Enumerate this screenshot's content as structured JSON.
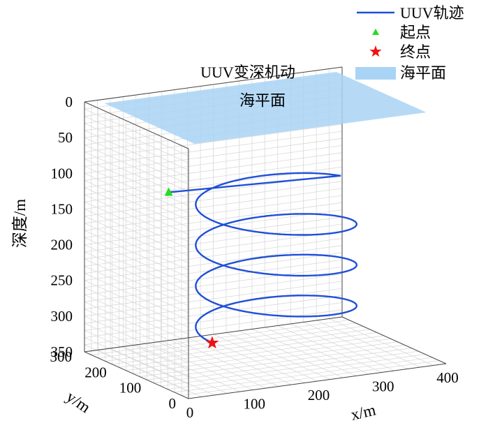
{
  "chart_data": {
    "type": "line3d",
    "title": "UUV变深机动",
    "xlabel": "x/m",
    "ylabel": "y/m",
    "zlabel": "深度/m",
    "xlim": [
      0,
      400
    ],
    "ylim": [
      0,
      300
    ],
    "zlim": [
      0,
      350
    ],
    "z_reversed": true,
    "x_ticks": [
      "0",
      "100",
      "200",
      "300",
      "400"
    ],
    "y_ticks": [
      "0",
      "100",
      "200",
      "300"
    ],
    "z_ticks": [
      "0",
      "50",
      "100",
      "150",
      "200",
      "250",
      "300",
      "350"
    ],
    "grid": true,
    "legend_position": "top-right",
    "series": [
      {
        "name": "UUV轨迹",
        "kind": "helix",
        "color": "#1f4fd8",
        "start": {
          "x": 50,
          "y": 150,
          "z": 100
        },
        "center": {
          "x": 190,
          "y": 100
        },
        "radius": 110,
        "depth_range": [
          100,
          300
        ],
        "turns": 3.5
      },
      {
        "name": "起点",
        "kind": "marker",
        "marker": "triangle",
        "color": "#22dd22",
        "x": 50,
        "y": 150,
        "z": 100
      },
      {
        "name": "终点",
        "kind": "marker",
        "marker": "star",
        "color": "#ee1111",
        "x": 160,
        "y": 100,
        "z": 300
      },
      {
        "name": "海平面",
        "kind": "plane",
        "color": "#a9d4f5",
        "z": 0,
        "x_extent": [
          20,
          380
        ],
        "y_extent": [
          20,
          280
        ],
        "label": "海平面"
      }
    ]
  }
}
